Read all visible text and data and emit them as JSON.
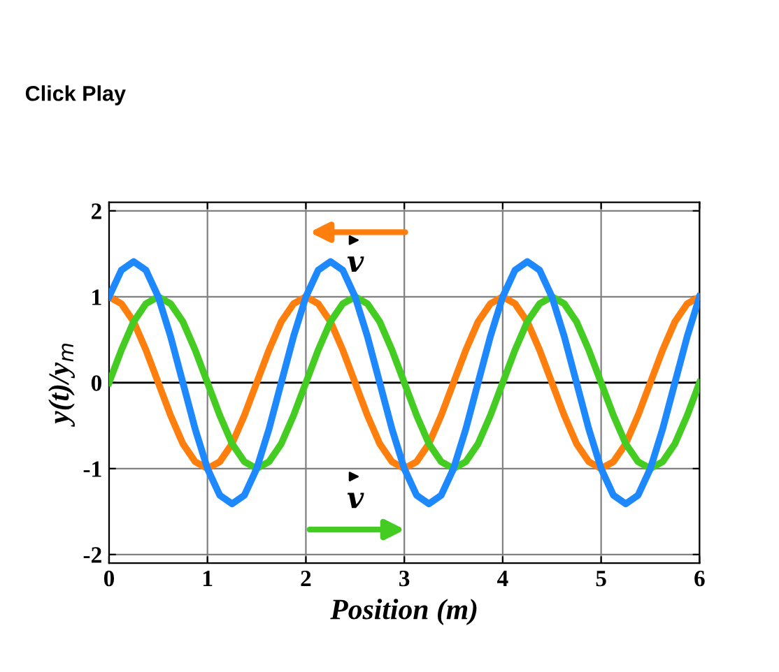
{
  "chart_data": {
    "type": "line",
    "xlabel": "Position (m)",
    "ylabel": "y(t)/y$_{m}$",
    "annotations": [
      "Click Play",
      "v",
      "v"
    ],
    "x": [
      0,
      0.125,
      0.25,
      0.375,
      0.5,
      0.625,
      0.75,
      0.875,
      1,
      1.125,
      1.25,
      1.375,
      1.5,
      1.625,
      1.75,
      1.875,
      2,
      2.125,
      2.25,
      2.375,
      2.5,
      2.625,
      2.75,
      2.875,
      3,
      3.125,
      3.25,
      3.375,
      3.5,
      3.625,
      3.75,
      3.875,
      4,
      4.125,
      4.25,
      4.375,
      4.5,
      4.625,
      4.75,
      4.875,
      5,
      5.125,
      5.25,
      5.375,
      5.5,
      5.625,
      5.75,
      5.875,
      6
    ],
    "series": [
      {
        "color": "#ff7f0e",
        "values": [
          1,
          0.92,
          0.71,
          0.38,
          0,
          -0.38,
          -0.71,
          -0.92,
          -1,
          -0.92,
          -0.71,
          -0.38,
          0,
          0.38,
          0.71,
          0.92,
          1,
          0.92,
          0.71,
          0.38,
          0,
          -0.38,
          -0.71,
          -0.92,
          -1,
          -0.92,
          -0.71,
          -0.38,
          0,
          0.38,
          0.71,
          0.92,
          1,
          0.92,
          0.71,
          0.38,
          0,
          -0.38,
          -0.71,
          -0.92,
          -1,
          -0.92,
          -0.71,
          -0.38,
          0,
          0.38,
          0.71,
          0.92,
          1
        ]
      },
      {
        "color": "#44cc22",
        "values": [
          0,
          0.38,
          0.71,
          0.92,
          1,
          0.92,
          0.71,
          0.38,
          0,
          -0.38,
          -0.71,
          -0.92,
          -1,
          -0.92,
          -0.71,
          -0.38,
          0,
          0.38,
          0.71,
          0.92,
          1,
          0.92,
          0.71,
          0.38,
          0,
          -0.38,
          -0.71,
          -0.92,
          -1,
          -0.92,
          -0.71,
          -0.38,
          0,
          0.38,
          0.71,
          0.92,
          1,
          0.92,
          0.71,
          0.38,
          0,
          -0.38,
          -0.71,
          -0.92,
          -1,
          -0.92,
          -0.71,
          -0.38,
          0
        ]
      },
      {
        "color": "#1e88ff",
        "values": [
          1,
          1.31,
          1.41,
          1.31,
          1,
          0.54,
          0,
          -0.54,
          -1,
          -1.31,
          -1.41,
          -1.31,
          -1,
          -0.54,
          0,
          0.54,
          1,
          1.31,
          1.41,
          1.31,
          1,
          0.54,
          0,
          -0.54,
          -1,
          -1.31,
          -1.41,
          -1.31,
          -1,
          -0.54,
          0,
          0.54,
          1,
          1.31,
          1.41,
          1.31,
          1,
          0.54,
          0,
          -0.54,
          -1,
          -1.31,
          -1.41,
          -1.31,
          -1,
          -0.54,
          0,
          0.54,
          1
        ]
      }
    ],
    "xlim": [
      0,
      6
    ],
    "ylim": [
      -2.1,
      2.1
    ],
    "xticks": [
      0,
      1,
      2,
      3,
      4,
      5,
      6
    ],
    "yticks": [
      -2,
      -1,
      0,
      1,
      2
    ],
    "grid": true,
    "ref_lines": [
      {
        "axis": "y",
        "value": 0,
        "color": "#000000"
      }
    ]
  }
}
